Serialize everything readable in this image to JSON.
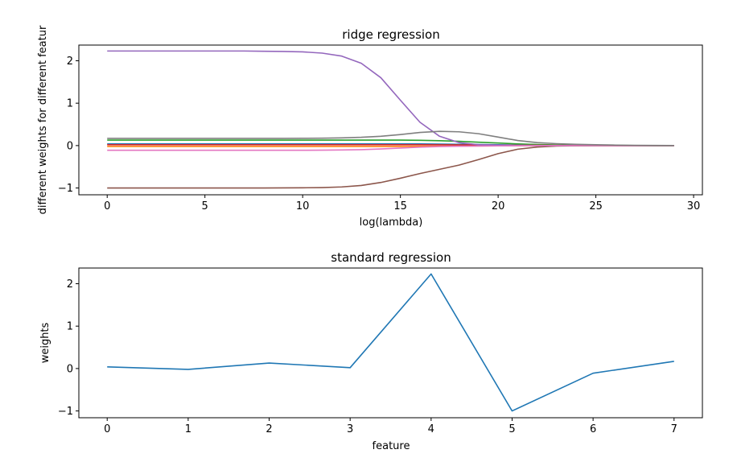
{
  "chart_data": [
    {
      "type": "line",
      "title": "ridge regression",
      "xlabel": "log(lambda)",
      "ylabel": "different weights for different featur",
      "xlim": [
        -1.45,
        30.45
      ],
      "ylim": [
        -1.16,
        2.37
      ],
      "xticks": [
        0,
        5,
        10,
        15,
        20,
        25,
        30
      ],
      "yticks": [
        -1,
        0,
        1,
        2
      ],
      "grid": false,
      "x": [
        0,
        1,
        2,
        3,
        4,
        5,
        6,
        7,
        8,
        9,
        10,
        11,
        12,
        13,
        14,
        15,
        16,
        17,
        18,
        19,
        20,
        21,
        22,
        23,
        24,
        25,
        26,
        27,
        28,
        29
      ],
      "series": [
        {
          "color": "#1f77b4",
          "values": [
            0.04,
            0.04,
            0.04,
            0.04,
            0.04,
            0.04,
            0.04,
            0.04,
            0.04,
            0.04,
            0.04,
            0.04,
            0.04,
            0.04,
            0.04,
            0.04,
            0.04,
            0.035,
            0.03,
            0.025,
            0.02,
            0.015,
            0.01,
            0.008,
            0.006,
            0.004,
            0.002,
            0.001,
            0.0,
            0.0
          ]
        },
        {
          "color": "#ff7f0e",
          "values": [
            -0.02,
            -0.02,
            -0.02,
            -0.02,
            -0.02,
            -0.02,
            -0.02,
            -0.02,
            -0.02,
            -0.02,
            -0.02,
            -0.02,
            -0.02,
            -0.02,
            -0.02,
            -0.02,
            -0.018,
            -0.016,
            -0.012,
            -0.009,
            -0.006,
            -0.004,
            -0.002,
            -0.001,
            0.0,
            0.0,
            0.0,
            0.0,
            0.0,
            0.0
          ]
        },
        {
          "color": "#2ca02c",
          "values": [
            0.13,
            0.13,
            0.13,
            0.13,
            0.13,
            0.13,
            0.13,
            0.13,
            0.13,
            0.13,
            0.13,
            0.13,
            0.13,
            0.13,
            0.13,
            0.13,
            0.125,
            0.115,
            0.1,
            0.08,
            0.06,
            0.04,
            0.025,
            0.015,
            0.01,
            0.006,
            0.003,
            0.002,
            0.001,
            0.0
          ]
        },
        {
          "color": "#d62728",
          "values": [
            0.02,
            0.02,
            0.02,
            0.02,
            0.02,
            0.02,
            0.02,
            0.02,
            0.02,
            0.02,
            0.02,
            0.02,
            0.02,
            0.02,
            0.02,
            0.02,
            0.02,
            0.018,
            0.016,
            0.013,
            0.01,
            0.007,
            0.005,
            0.003,
            0.002,
            0.001,
            0.0,
            0.0,
            0.0,
            0.0
          ]
        },
        {
          "color": "#9467bd",
          "values": [
            2.23,
            2.23,
            2.23,
            2.23,
            2.23,
            2.23,
            2.23,
            2.23,
            2.225,
            2.22,
            2.21,
            2.18,
            2.11,
            1.94,
            1.6,
            1.07,
            0.55,
            0.22,
            0.07,
            0.02,
            0.01,
            0.005,
            0.002,
            0.001,
            0.0,
            0.0,
            0.0,
            0.0,
            0.0,
            0.0
          ]
        },
        {
          "color": "#8c564b",
          "values": [
            -1.0,
            -1.0,
            -1.0,
            -1.0,
            -1.0,
            -1.0,
            -1.0,
            -1.0,
            -1.0,
            -0.998,
            -0.995,
            -0.99,
            -0.975,
            -0.94,
            -0.87,
            -0.77,
            -0.66,
            -0.56,
            -0.46,
            -0.33,
            -0.19,
            -0.085,
            -0.035,
            -0.012,
            -0.004,
            -0.002,
            -0.001,
            0.0,
            0.0,
            0.0
          ]
        },
        {
          "color": "#e377c2",
          "values": [
            -0.11,
            -0.11,
            -0.11,
            -0.11,
            -0.11,
            -0.11,
            -0.11,
            -0.11,
            -0.11,
            -0.11,
            -0.11,
            -0.108,
            -0.104,
            -0.096,
            -0.08,
            -0.058,
            -0.036,
            -0.022,
            -0.015,
            -0.01,
            -0.007,
            -0.004,
            -0.002,
            -0.001,
            0.0,
            0.0,
            0.0,
            0.0,
            0.0,
            0.0
          ]
        },
        {
          "color": "#7f7f7f",
          "values": [
            0.17,
            0.17,
            0.17,
            0.17,
            0.17,
            0.17,
            0.17,
            0.17,
            0.17,
            0.17,
            0.172,
            0.175,
            0.182,
            0.195,
            0.22,
            0.26,
            0.31,
            0.335,
            0.325,
            0.28,
            0.2,
            0.12,
            0.07,
            0.045,
            0.03,
            0.02,
            0.012,
            0.007,
            0.003,
            0.001
          ]
        }
      ]
    },
    {
      "type": "line",
      "title": "standard regression",
      "xlabel": "feature",
      "ylabel": "weights",
      "xlim": [
        -0.35,
        7.35
      ],
      "ylim": [
        -1.16,
        2.37
      ],
      "xticks": [
        0,
        1,
        2,
        3,
        4,
        5,
        6,
        7
      ],
      "yticks": [
        -1,
        0,
        1,
        2
      ],
      "grid": false,
      "x": [
        0,
        1,
        2,
        3,
        4,
        5,
        6,
        7
      ],
      "series": [
        {
          "color": "#1f77b4",
          "values": [
            0.04,
            -0.02,
            0.13,
            0.02,
            2.23,
            -1.0,
            -0.11,
            0.17
          ]
        }
      ]
    }
  ]
}
